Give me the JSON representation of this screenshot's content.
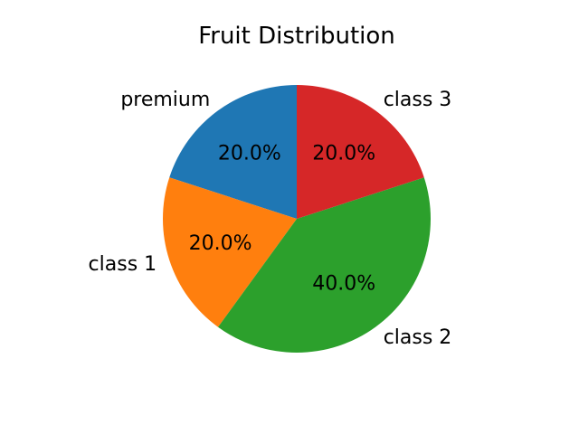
{
  "chart_data": {
    "type": "pie",
    "title": "Fruit Distribution",
    "categories": [
      "premium",
      "class 1",
      "class 2",
      "class 3"
    ],
    "values": [
      20,
      20,
      40,
      20
    ],
    "percent_labels": [
      "20.0%",
      "20.0%",
      "40.0%",
      "20.0%"
    ],
    "colors": [
      "#1f77b4",
      "#ff7f0e",
      "#2ca02c",
      "#d62728"
    ],
    "start_angle_deg": 90,
    "direction": "counterclockwise"
  }
}
